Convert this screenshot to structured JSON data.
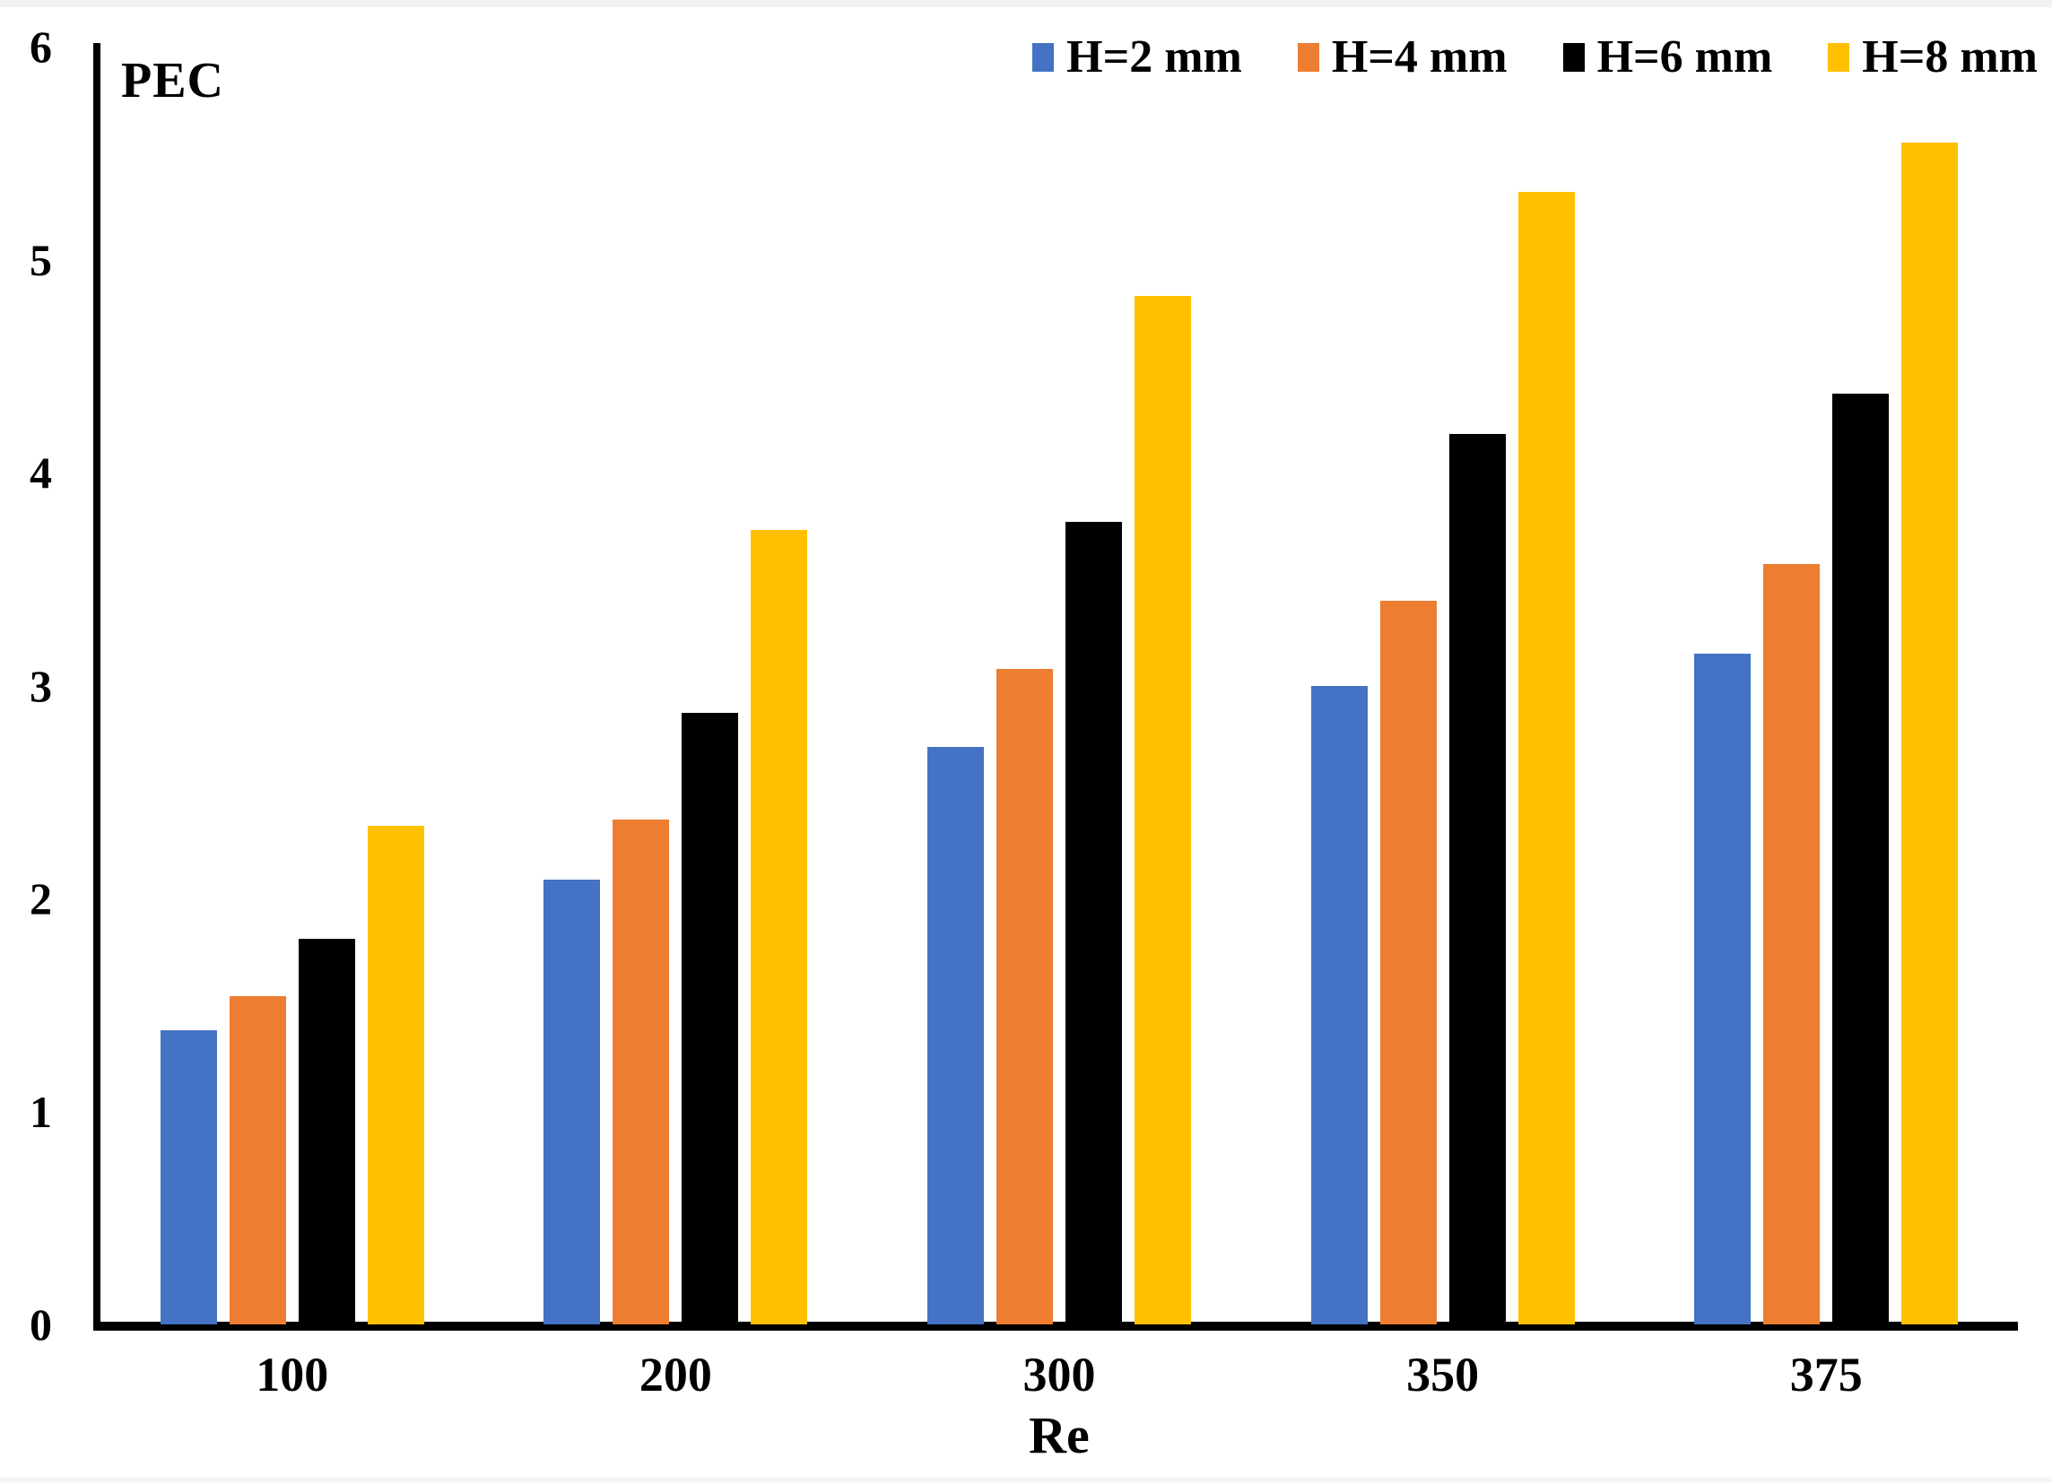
{
  "chart_data": {
    "type": "bar",
    "title": "",
    "ylabel": "PEC",
    "xlabel": "Re",
    "categories": [
      "100",
      "200",
      "300",
      "350",
      "375"
    ],
    "series": [
      {
        "name": "H=2 mm",
        "color": "#4472C4",
        "values": [
          1.38,
          2.09,
          2.71,
          3.0,
          3.15
        ]
      },
      {
        "name": "H=4 mm",
        "color": "#ED7D31",
        "values": [
          1.54,
          2.37,
          3.08,
          3.4,
          3.57
        ]
      },
      {
        "name": "H=6 mm",
        "color": "#000000",
        "values": [
          1.81,
          2.87,
          3.77,
          4.18,
          4.37
        ]
      },
      {
        "name": "H=8 mm",
        "color": "#FFC000",
        "values": [
          2.34,
          3.73,
          4.83,
          5.32,
          5.55
        ]
      }
    ],
    "ylim": [
      0,
      6
    ],
    "yticks": [
      0,
      1,
      2,
      3,
      4,
      5,
      6
    ],
    "grid": false,
    "legend_position": "top-right",
    "axis_color": "#000000"
  }
}
